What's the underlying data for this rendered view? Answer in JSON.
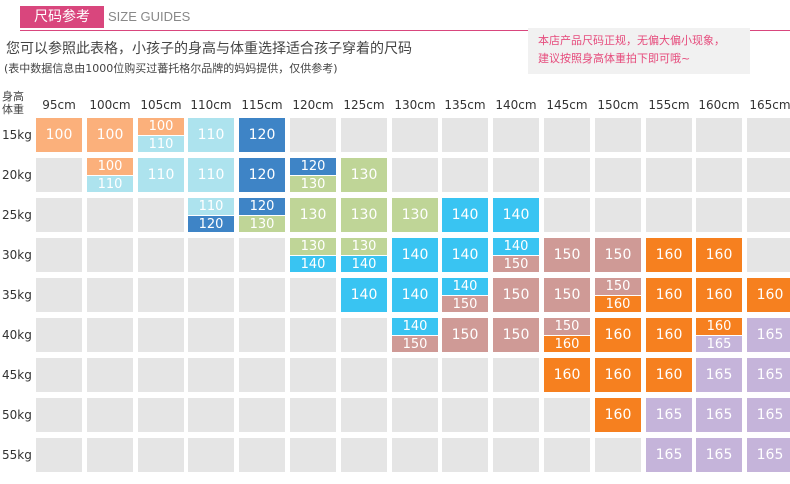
{
  "header": {
    "title": "尺码参考",
    "title_en": "SIZE GUIDES",
    "desc1": "您可以参照此表格，小孩子的身高与体重选择适合孩子穿着的尺码",
    "desc2": "(表中数据信息由1000位购买过蕃托格尔品牌的妈妈提供，仅供参考)",
    "notice_line1": "本店产品尺码正规，无偏大偏小现象，",
    "notice_line2": "建议按照身高体重拍下即可哦~"
  },
  "table": {
    "corner_line1": "身高",
    "corner_line2": "体重",
    "heights": [
      "95cm",
      "100cm",
      "105cm",
      "110cm",
      "115cm",
      "120cm",
      "125cm",
      "130cm",
      "135cm",
      "140cm",
      "145cm",
      "150cm",
      "155cm",
      "160cm",
      "165cm"
    ],
    "weights": [
      "15kg",
      "20kg",
      "25kg",
      "30kg",
      "35kg",
      "40kg",
      "45kg",
      "50kg",
      "55kg"
    ],
    "rows": [
      [
        [
          "100"
        ],
        [
          "100"
        ],
        [
          "100",
          "110"
        ],
        [
          "110"
        ],
        [
          "120"
        ],
        [],
        [],
        [],
        [],
        [],
        [],
        [],
        [],
        [],
        []
      ],
      [
        [],
        [
          "100",
          "110"
        ],
        [
          "110"
        ],
        [
          "110"
        ],
        [
          "120"
        ],
        [
          "120",
          "130"
        ],
        [
          "130"
        ],
        [],
        [],
        [],
        [],
        [],
        [],
        [],
        []
      ],
      [
        [],
        [],
        [],
        [
          "110",
          "120"
        ],
        [
          "120",
          "130"
        ],
        [
          "130"
        ],
        [
          "130"
        ],
        [
          "130"
        ],
        [
          "140"
        ],
        [
          "140"
        ],
        [],
        [],
        [],
        [],
        []
      ],
      [
        [],
        [],
        [],
        [],
        [],
        [
          "130",
          "140"
        ],
        [
          "130",
          "140"
        ],
        [
          "140"
        ],
        [
          "140"
        ],
        [
          "140",
          "150"
        ],
        [
          "150"
        ],
        [
          "150"
        ],
        [
          "160"
        ],
        [
          "160"
        ],
        []
      ],
      [
        [],
        [],
        [],
        [],
        [],
        [],
        [
          "140"
        ],
        [
          "140"
        ],
        [
          "140",
          "150"
        ],
        [
          "150"
        ],
        [
          "150"
        ],
        [
          "150",
          "160"
        ],
        [
          "160"
        ],
        [
          "160"
        ],
        [
          "160"
        ]
      ],
      [
        [],
        [],
        [],
        [],
        [],
        [],
        [],
        [
          "140",
          "150"
        ],
        [
          "150"
        ],
        [
          "150"
        ],
        [
          "150",
          "160"
        ],
        [
          "160"
        ],
        [
          "160"
        ],
        [
          "160",
          "165"
        ],
        [
          "165"
        ]
      ],
      [
        [],
        [],
        [],
        [],
        [],
        [],
        [],
        [],
        [],
        [],
        [
          "160"
        ],
        [
          "160"
        ],
        [
          "160"
        ],
        [
          "165"
        ],
        [
          "165"
        ]
      ],
      [
        [],
        [],
        [],
        [],
        [],
        [],
        [],
        [],
        [],
        [],
        [],
        [
          "160"
        ],
        [
          "165"
        ],
        [
          "165"
        ],
        [
          "165"
        ]
      ],
      [
        [],
        [],
        [],
        [],
        [],
        [],
        [],
        [],
        [],
        [],
        [],
        [],
        [
          "165"
        ],
        [
          "165"
        ],
        [
          "165"
        ]
      ]
    ]
  },
  "colors": {
    "100": "#fbb07b",
    "110": "#ade3ee",
    "120": "#3e84c6",
    "130": "#bfd597",
    "140": "#39c4f2",
    "150": "#cf9a96",
    "160": "#f6801f",
    "165": "#c5b4da",
    "empty": "#e5e5e5",
    "accent": "#d9467d"
  }
}
